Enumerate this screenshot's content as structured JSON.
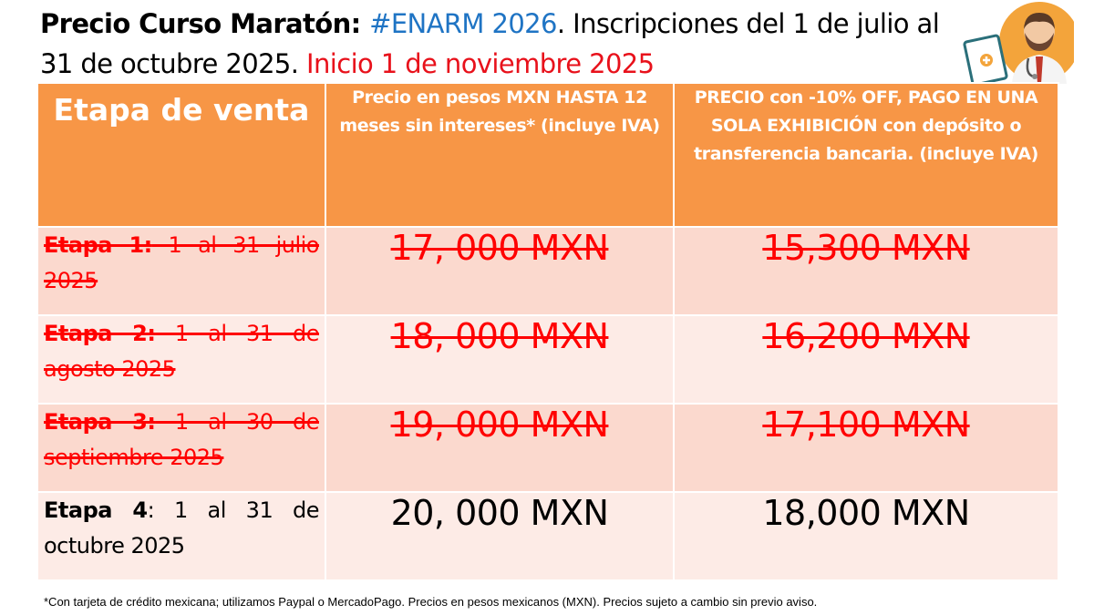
{
  "title": {
    "part1": "Precio Curso Maratón: ",
    "part2": "#ENARM 2026",
    "part3": ". Inscripciones del 1 de julio al 31 de octubre 2025. ",
    "part4": "Inicio 1 de noviembre 2025"
  },
  "colors": {
    "header_orange": "#f79646",
    "accent_blue": "#1f74c4",
    "accent_red": "#e8111b",
    "row_dark": "#fbd9ce",
    "row_light": "#fdebe6"
  },
  "illustration": {
    "icon": "doctor-holding-clipboard-icon"
  },
  "table": {
    "headers": [
      "Etapa de venta",
      "Precio en pesos MXN HASTA 12 meses sin intereses* (incluye IVA)",
      "PRECIO con -10% OFF, PAGO EN UNA SOLA EXHIBICIÓN con depósito o transferencia bancaria. (incluye IVA)"
    ],
    "rows": [
      {
        "stage_label": "Etapa 1:",
        "stage_dates": " 1 al 31 julio 2025",
        "price_msi": "17, 000 MXN",
        "price_cash": "15,300 MXN",
        "status": "struck"
      },
      {
        "stage_label": "Etapa 2:",
        "stage_dates": " 1 al 31 de agosto 2025",
        "price_msi": "18, 000 MXN",
        "price_cash": "16,200 MXN",
        "status": "struck"
      },
      {
        "stage_label": "Etapa 3:",
        "stage_dates": " 1 al 30 de septiembre 2025",
        "price_msi": "19, 000 MXN",
        "price_cash": "17,100 MXN",
        "status": "struck"
      },
      {
        "stage_label": "Etapa 4",
        "stage_dates": ": 1 al 31 de octubre 2025",
        "price_msi": "20, 000 MXN",
        "price_cash": "18,000 MXN",
        "status": "current"
      }
    ]
  },
  "footnote": "*Con tarjeta de crédito mexicana; utilizamos Paypal o MercadoPago. Precios en pesos mexicanos (MXN). Precios sujeto a cambio sin previo aviso."
}
